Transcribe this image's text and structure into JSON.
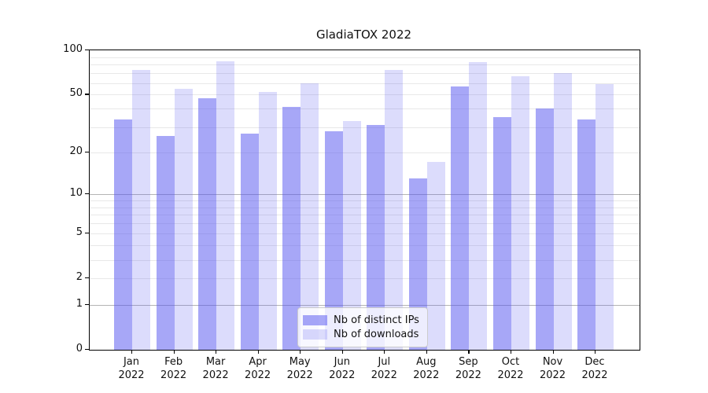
{
  "chart_data": {
    "type": "bar",
    "title": "GladiaTOX 2022",
    "categories": [
      "Jan",
      "Feb",
      "Mar",
      "Apr",
      "May",
      "Jun",
      "Jul",
      "Aug",
      "Sep",
      "Oct",
      "Nov",
      "Dec"
    ],
    "category_year": "2022",
    "series": [
      {
        "name": "Nb of distinct IPs",
        "color": "rgba(80,80,240,0.5)",
        "values": [
          34,
          26,
          47,
          27,
          41,
          28,
          31,
          13,
          57,
          35,
          40,
          34
        ]
      },
      {
        "name": "Nb of downloads",
        "color": "rgba(80,80,240,0.2)",
        "values": [
          74,
          55,
          84,
          52,
          60,
          33,
          74,
          17,
          83,
          67,
          70,
          59
        ]
      }
    ],
    "xlabel": "",
    "ylabel": "",
    "yscale": "log1p",
    "ylim": [
      0,
      100
    ],
    "ytick_values": [
      0,
      1,
      2,
      5,
      10,
      20,
      50,
      100
    ],
    "ytick_labels": [
      "0",
      "1",
      "2",
      "5",
      "10",
      "20",
      "50",
      "100"
    ],
    "major_gridlines": [
      1,
      10
    ],
    "minor_gridlines": [
      2,
      3,
      4,
      5,
      6,
      7,
      8,
      9,
      20,
      30,
      40,
      50,
      60,
      70,
      80,
      90
    ],
    "grid": true,
    "legend_position": "lower center inside plot"
  },
  "colors": {
    "bar_ips": "rgba(80,80,240,0.5)",
    "bar_downloads": "rgba(80,80,240,0.2)",
    "gridline_major": "#b4b4b4",
    "gridline_minor": "#e8e8e8",
    "axis_spine": "#000000",
    "text": "#111111",
    "legend_border": "#cccccc"
  }
}
